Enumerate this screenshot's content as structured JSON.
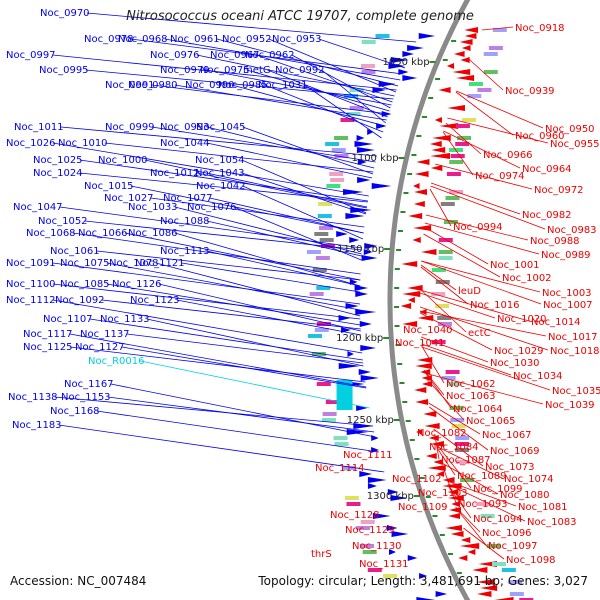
{
  "title": "Nitrosococcus oceani ATCC 19707, complete genome",
  "footer": {
    "accession": "Accession: NC_007484",
    "summary": "Topology: circular; Length: 3,481,691 bp; Genes: 3,027"
  },
  "colors": {
    "forward": "#0000ee",
    "reverse": "#ee0000",
    "rna": "#00d0e0",
    "backbone": "#8a8a8a",
    "tick": "#2a8a2a"
  },
  "scale_labels": [
    "1050 kbp",
    "1100 kbp",
    "1150 kbp",
    "1200 kbp",
    "1250 kbp",
    "1300 kbp"
  ],
  "left_labels": [
    "Noc_0970",
    "Noc_0978",
    "Noc_0968",
    "Noc_0961",
    "Noc_0952",
    "Noc_0953",
    "Noc_0997",
    "Noc_0976",
    "Noc_0967",
    "Noc_0962",
    "Noc_0995",
    "Noc_0979",
    "Noc_0975",
    "metG",
    "Noc_0992",
    "Noc_0991",
    "Noc_0980",
    "Noc_0990",
    "Noc_0985",
    "Noc_1031",
    "Noc_1011",
    "Noc_0999",
    "Noc_0993",
    "Noc_1045",
    "Noc_1026",
    "Noc_1010",
    "Noc_1044",
    "Noc_1025",
    "Noc_1000",
    "Noc_1054",
    "Noc_1024",
    "Noc_1012",
    "Noc_1043",
    "Noc_1015",
    "Noc_1042",
    "Noc_1027",
    "Noc_1077",
    "Noc_1047",
    "Noc_1033",
    "Noc_1076",
    "Noc_1052",
    "Noc_1088",
    "Noc_1068",
    "Noc_1066",
    "Noc_1086",
    "Noc_1061",
    "Noc_1113",
    "Noc_1091",
    "Noc_1075",
    "Noc_1078",
    "Noc_1121",
    "Noc_1100",
    "Noc_1085",
    "Noc_1126",
    "Noc_1112",
    "Noc_1092",
    "Noc_1123",
    "Noc_1107",
    "Noc_1133",
    "Noc_1117",
    "Noc_1137",
    "Noc_1125",
    "Noc_1127",
    "Noc_R0016",
    "Noc_1167",
    "Noc_1138",
    "Noc_1153",
    "Noc_1168",
    "Noc_1183"
  ],
  "right_labels": [
    "Noc_0918",
    "Noc_0939",
    "Noc_0950",
    "Noc_0960",
    "Noc_0955",
    "Noc_0966",
    "Noc_0964",
    "Noc_0974",
    "Noc_0972",
    "Noc_0982",
    "Noc_0994",
    "Noc_0983",
    "Noc_0988",
    "Noc_0989",
    "Noc_1001",
    "Noc_1002",
    "leuD",
    "Noc_1003",
    "Noc_1016",
    "Noc_1007",
    "Noc_1020",
    "Noc_1014",
    "Noc_1040",
    "ectC",
    "Noc_1017",
    "Noc_1041",
    "Noc_1029",
    "Noc_1018",
    "Noc_1030",
    "Noc_1034",
    "Noc_1062",
    "Noc_1035",
    "Noc_1063",
    "Noc_1039",
    "Noc_1064",
    "Noc_1065",
    "Noc_1082",
    "Noc_1067",
    "Noc_1084",
    "Noc_1069",
    "Noc_1087",
    "Noc_1111",
    "Noc_1073",
    "Noc_1114",
    "Noc_1089",
    "Noc_1074",
    "Noc_1102",
    "Noc_1099",
    "Noc_1103",
    "Noc_1080",
    "Noc_1093",
    "Noc_1109",
    "Noc_1081",
    "Noc_1094",
    "Noc_1083",
    "Noc_1128",
    "Noc_1096",
    "Noc_1129",
    "Noc_1097",
    "thrS",
    "Noc_1130",
    "Noc_1098",
    "Noc_1131"
  ]
}
